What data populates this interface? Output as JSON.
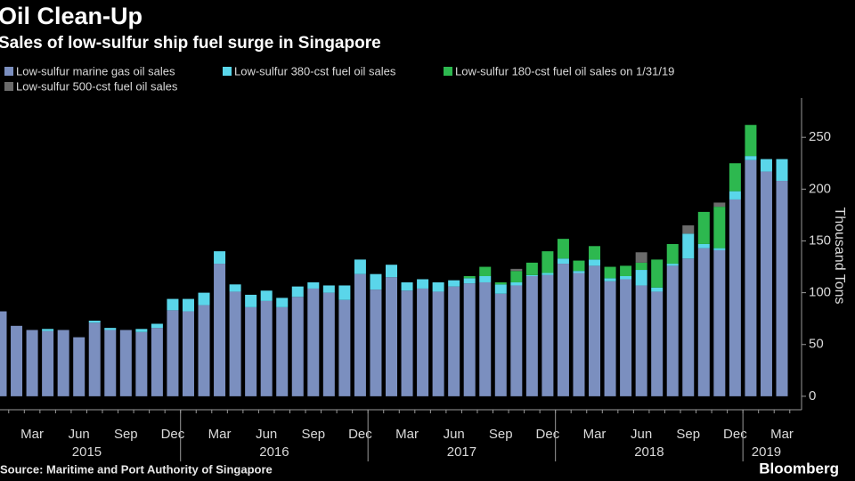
{
  "chart_data": {
    "type": "stacked-bar",
    "title": "Oil Clean-Up",
    "subtitle": "Sales of low-sulfur ship fuel surge in Singapore",
    "y_label": "Thousand Tons",
    "source": "Source: Maritime and Port Authority of Singapore",
    "credit": "Bloomberg",
    "categories": [
      null,
      null,
      "Mar",
      null,
      null,
      "Jun",
      null,
      null,
      "Sep",
      null,
      null,
      "Dec",
      null,
      null,
      "Mar",
      null,
      null,
      "Jun",
      null,
      null,
      "Sep",
      null,
      null,
      "Dec",
      null,
      null,
      "Mar",
      null,
      null,
      "Jun",
      null,
      null,
      "Sep",
      null,
      null,
      "Dec",
      null,
      null,
      "Mar",
      null,
      null,
      "Jun",
      null,
      null,
      "Sep",
      null,
      null,
      "Dec",
      null,
      null,
      "Mar"
    ],
    "years": [
      "2015",
      "2016",
      "2017",
      "2018",
      "2019"
    ],
    "series": [
      {
        "name": "Low-sulfur marine gas oil sales",
        "color": "#7b8fbf",
        "values": [
          82,
          68,
          64,
          63,
          64,
          57,
          71,
          64,
          64,
          62,
          66,
          83,
          82,
          88,
          128,
          101,
          86,
          92,
          86,
          96,
          104,
          100,
          93,
          118,
          103,
          115,
          102,
          104,
          101,
          106,
          109,
          110,
          99,
          107,
          116,
          117,
          128,
          119,
          126,
          111,
          113,
          107,
          101,
          126,
          133,
          143,
          141,
          190,
          228,
          217,
          208
        ]
      },
      {
        "name": "Low-sulfur 380-cst fuel oil sales",
        "color": "#5ad6ea",
        "values": [
          0,
          0,
          0,
          2,
          0,
          0,
          2,
          2,
          0,
          3,
          4,
          11,
          12,
          12,
          12,
          7,
          12,
          10,
          9,
          10,
          6,
          7,
          14,
          14,
          15,
          12,
          8,
          9,
          9,
          6,
          5,
          6,
          9,
          3,
          1,
          2,
          5,
          2,
          6,
          3,
          3,
          15,
          4,
          2,
          24,
          4,
          2,
          8,
          4,
          12,
          21
        ]
      },
      {
        "name": "Low-sulfur 180-cst fuel oil sales on 1/31/19",
        "color": "#2db84f",
        "values": [
          0,
          0,
          0,
          0,
          0,
          0,
          0,
          0,
          0,
          0,
          0,
          0,
          0,
          0,
          0,
          0,
          0,
          0,
          0,
          0,
          0,
          0,
          0,
          0,
          0,
          0,
          0,
          0,
          0,
          0,
          2,
          9,
          2,
          11,
          12,
          21,
          19,
          10,
          13,
          11,
          10,
          7,
          27,
          19,
          0,
          31,
          40,
          27,
          30,
          0,
          0
        ]
      },
      {
        "name": "Low-sulfur 500-cst fuel oil sales",
        "color": "#6b6b6b",
        "values": [
          0,
          0,
          0,
          0,
          0,
          0,
          0,
          0,
          0,
          0,
          0,
          0,
          0,
          0,
          0,
          0,
          0,
          0,
          0,
          0,
          0,
          0,
          0,
          0,
          0,
          0,
          0,
          0,
          0,
          0,
          0,
          0,
          0,
          2,
          0,
          0,
          0,
          0,
          0,
          0,
          0,
          10,
          0,
          0,
          8,
          0,
          4,
          0,
          0,
          0,
          0
        ]
      }
    ],
    "ylim": [
      -13,
      288
    ],
    "yticks": [
      0,
      50,
      100,
      150,
      200,
      250
    ]
  }
}
